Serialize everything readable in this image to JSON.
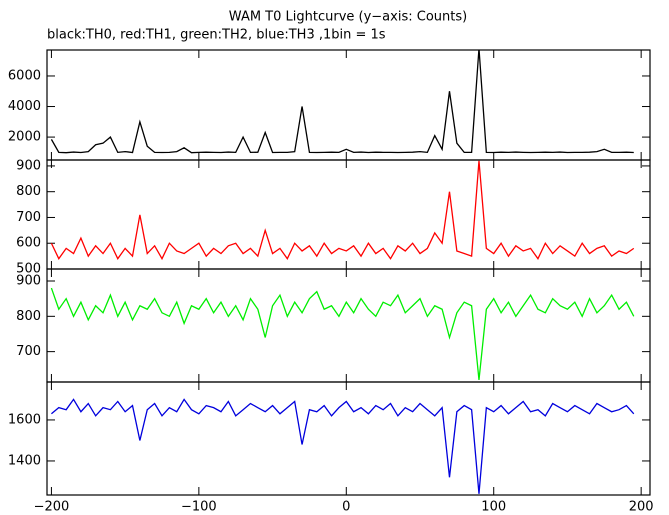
{
  "chart_data": {
    "type": "line",
    "title": "WAM T0 Lightcurve (y−axis: Counts)",
    "subtitle": "black:TH0, red:TH1, green:TH2, blue:TH3 ,1bin = 1s",
    "xlim": [
      -203,
      206
    ],
    "xticks": [
      {
        "value": -200,
        "label": "−200"
      },
      {
        "value": -100,
        "label": "−100"
      },
      0,
      100,
      200
    ],
    "x": [
      -200,
      -195,
      -190,
      -185,
      -180,
      -175,
      -170,
      -165,
      -160,
      -155,
      -150,
      -145,
      -140,
      -135,
      -130,
      -125,
      -120,
      -115,
      -110,
      -105,
      -100,
      -95,
      -90,
      -85,
      -80,
      -75,
      -70,
      -65,
      -60,
      -55,
      -50,
      -45,
      -40,
      -35,
      -30,
      -25,
      -20,
      -15,
      -10,
      -5,
      0,
      5,
      10,
      15,
      20,
      25,
      30,
      35,
      40,
      45,
      50,
      55,
      60,
      65,
      70,
      75,
      80,
      85,
      90,
      95,
      100,
      105,
      110,
      115,
      120,
      125,
      130,
      135,
      140,
      145,
      150,
      155,
      160,
      165,
      170,
      175,
      180,
      185,
      190,
      195
    ],
    "panels": [
      {
        "color": "#000000",
        "ylim": [
          500,
          7700
        ],
        "yticks": [
          2000,
          4000,
          6000
        ],
        "values": [
          1850,
          1000,
          980,
          1020,
          990,
          1050,
          1500,
          1600,
          2000,
          1000,
          1050,
          990,
          3000,
          1400,
          1000,
          990,
          1000,
          1050,
          1300,
          980,
          1000,
          1010,
          1000,
          990,
          1020,
          1000,
          2000,
          1000,
          1010,
          2300,
          990,
          1000,
          1000,
          1050,
          4000,
          1000,
          990,
          1000,
          1010,
          1000,
          1200,
          1000,
          1020,
          990,
          1010,
          1000,
          1000,
          990,
          1000,
          1010,
          1050,
          1000,
          2100,
          1200,
          5000,
          1600,
          1000,
          1000,
          7800,
          1000,
          990,
          1010,
          1000,
          1020,
          1000,
          990,
          1000,
          1010,
          1000,
          1020,
          990,
          1000,
          1000,
          1010,
          1050,
          1200,
          1000,
          1000,
          1010,
          990
        ]
      },
      {
        "color": "#ff0000",
        "ylim": [
          500,
          923
        ],
        "yticks": [
          500,
          600,
          700,
          800,
          900
        ],
        "values": [
          600,
          540,
          580,
          560,
          620,
          550,
          590,
          560,
          600,
          540,
          580,
          550,
          710,
          560,
          590,
          540,
          600,
          570,
          560,
          580,
          600,
          550,
          580,
          560,
          590,
          600,
          560,
          580,
          550,
          650,
          560,
          580,
          540,
          600,
          570,
          590,
          550,
          600,
          560,
          580,
          570,
          590,
          550,
          600,
          560,
          580,
          540,
          590,
          570,
          600,
          560,
          580,
          640,
          600,
          800,
          570,
          560,
          550,
          920,
          580,
          560,
          600,
          550,
          590,
          570,
          580,
          540,
          600,
          560,
          590,
          570,
          550,
          600,
          560,
          580,
          590,
          550,
          570,
          560,
          580
        ]
      },
      {
        "color": "#00ee00",
        "ylim": [
          614,
          934
        ],
        "yticks": [
          700,
          800,
          900
        ],
        "values": [
          880,
          820,
          850,
          800,
          840,
          790,
          830,
          810,
          860,
          800,
          840,
          790,
          830,
          820,
          850,
          810,
          800,
          840,
          780,
          830,
          820,
          850,
          810,
          840,
          800,
          830,
          790,
          850,
          820,
          740,
          830,
          860,
          800,
          840,
          810,
          850,
          870,
          820,
          830,
          800,
          840,
          810,
          850,
          820,
          800,
          840,
          830,
          860,
          810,
          830,
          850,
          800,
          830,
          820,
          740,
          810,
          840,
          830,
          620,
          820,
          850,
          810,
          840,
          800,
          830,
          860,
          820,
          810,
          850,
          830,
          820,
          840,
          800,
          850,
          810,
          830,
          860,
          820,
          840,
          800
        ]
      },
      {
        "color": "#0000dd",
        "ylim": [
          1234,
          1785
        ],
        "yticks": [
          1400,
          1600
        ],
        "values": [
          1630,
          1660,
          1650,
          1700,
          1640,
          1680,
          1620,
          1660,
          1650,
          1690,
          1640,
          1670,
          1500,
          1650,
          1680,
          1620,
          1660,
          1640,
          1700,
          1650,
          1630,
          1670,
          1660,
          1640,
          1690,
          1620,
          1650,
          1680,
          1660,
          1640,
          1670,
          1630,
          1660,
          1690,
          1480,
          1650,
          1640,
          1670,
          1620,
          1660,
          1690,
          1640,
          1660,
          1630,
          1670,
          1650,
          1680,
          1620,
          1660,
          1640,
          1680,
          1650,
          1620,
          1660,
          1320,
          1640,
          1670,
          1650,
          1240,
          1660,
          1640,
          1670,
          1630,
          1660,
          1690,
          1640,
          1650,
          1620,
          1680,
          1660,
          1640,
          1670,
          1650,
          1630,
          1680,
          1660,
          1640,
          1650,
          1670,
          1630
        ]
      }
    ]
  }
}
